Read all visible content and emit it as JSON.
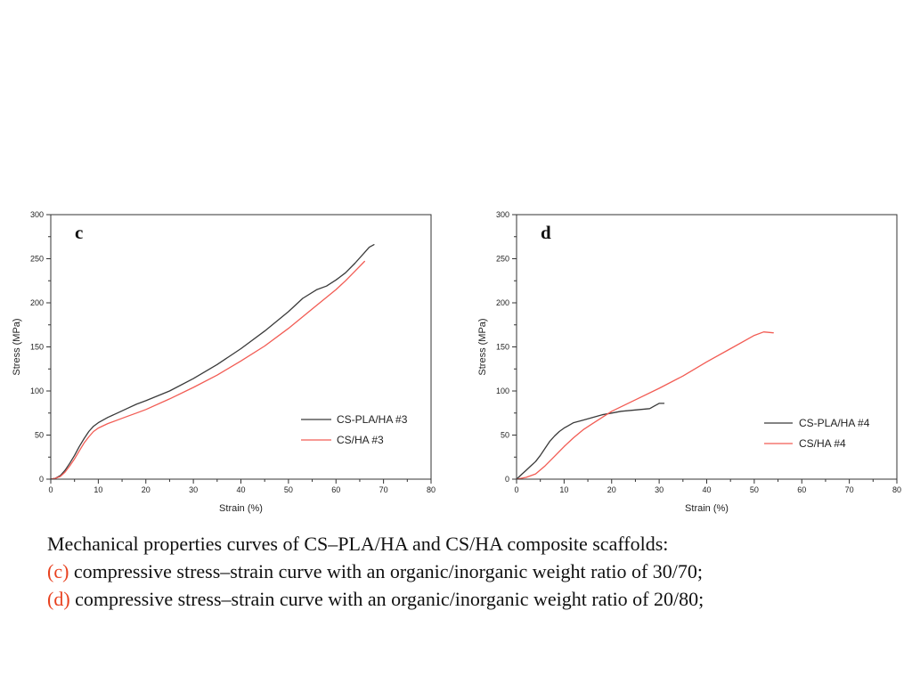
{
  "caption": {
    "line1": "Mechanical properties curves of CS–PLA/HA and CS/HA composite scaffolds:",
    "line2_tag": "(c)",
    "line2_text": " compressive stress–strain curve with an organic/inorganic weight ratio of 30/70;",
    "line3_tag": "(d)",
    "line3_text": " compressive stress–strain curve with an organic/inorganic weight ratio of 20/80;"
  },
  "colors": {
    "caption_tag": "#e8411f",
    "axes": "#333333"
  },
  "chart_data": [
    {
      "type": "line",
      "panel_label": "c",
      "xlabel": "Strain (%)",
      "ylabel": "Stress (MPa)",
      "xlim": [
        0,
        80
      ],
      "ylim": [
        0,
        300
      ],
      "xticks": [
        0,
        10,
        20,
        30,
        40,
        50,
        60,
        70,
        80
      ],
      "yticks": [
        0,
        50,
        100,
        150,
        200,
        250,
        300
      ],
      "grid": false,
      "legend": "lower-right",
      "series": [
        {
          "name": "CS-PLA/HA #3",
          "color": "#3a3a3a",
          "x": [
            0,
            1,
            2,
            3,
            4,
            5,
            6,
            7,
            8,
            9,
            10,
            12,
            14,
            16,
            18,
            20,
            25,
            30,
            35,
            40,
            45,
            50,
            53,
            56,
            58,
            60,
            62,
            64,
            66,
            67,
            68
          ],
          "y": [
            0,
            1,
            4,
            10,
            18,
            27,
            37,
            46,
            54,
            60,
            64,
            70,
            75,
            80,
            85,
            89,
            100,
            114,
            130,
            148,
            168,
            190,
            205,
            215,
            219,
            226,
            234,
            245,
            257,
            263,
            266
          ]
        },
        {
          "name": "CS/HA #3",
          "color": "#f25c54",
          "x": [
            0,
            1,
            2,
            3,
            4,
            5,
            6,
            7,
            8,
            9,
            10,
            12,
            14,
            16,
            18,
            20,
            25,
            30,
            35,
            40,
            45,
            50,
            55,
            60,
            62,
            64,
            66
          ],
          "y": [
            0,
            1,
            3,
            8,
            15,
            23,
            32,
            41,
            48,
            54,
            58,
            63,
            67,
            71,
            75,
            79,
            91,
            104,
            118,
            134,
            151,
            171,
            193,
            215,
            225,
            236,
            247
          ]
        }
      ]
    },
    {
      "type": "line",
      "panel_label": "d",
      "xlabel": "Strain (%)",
      "ylabel": "Stress (MPa)",
      "xlim": [
        0,
        80
      ],
      "ylim": [
        0,
        300
      ],
      "xticks": [
        0,
        10,
        20,
        30,
        40,
        50,
        60,
        70,
        80
      ],
      "yticks": [
        0,
        50,
        100,
        150,
        200,
        250,
        300
      ],
      "grid": false,
      "legend": "lower-right",
      "series": [
        {
          "name": "CS-PLA/HA #4",
          "color": "#3a3a3a",
          "x": [
            0,
            1,
            2,
            3,
            4,
            5,
            6,
            7,
            8,
            9,
            10,
            12,
            14,
            16,
            18,
            20,
            22,
            24,
            26,
            28,
            29,
            30,
            31
          ],
          "y": [
            0,
            5,
            10,
            15,
            20,
            27,
            35,
            43,
            49,
            54,
            58,
            64,
            67,
            70,
            73,
            75,
            77,
            78,
            79,
            80,
            83,
            86,
            86
          ]
        },
        {
          "name": "CS/HA #4",
          "color": "#f25c54",
          "x": [
            0,
            2,
            4,
            6,
            8,
            10,
            12,
            14,
            16,
            18,
            20,
            25,
            30,
            35,
            40,
            45,
            50,
            52,
            54
          ],
          "y": [
            0,
            2,
            6,
            15,
            26,
            37,
            47,
            56,
            63,
            70,
            77,
            90,
            103,
            117,
            133,
            148,
            163,
            167,
            166
          ]
        }
      ]
    }
  ]
}
